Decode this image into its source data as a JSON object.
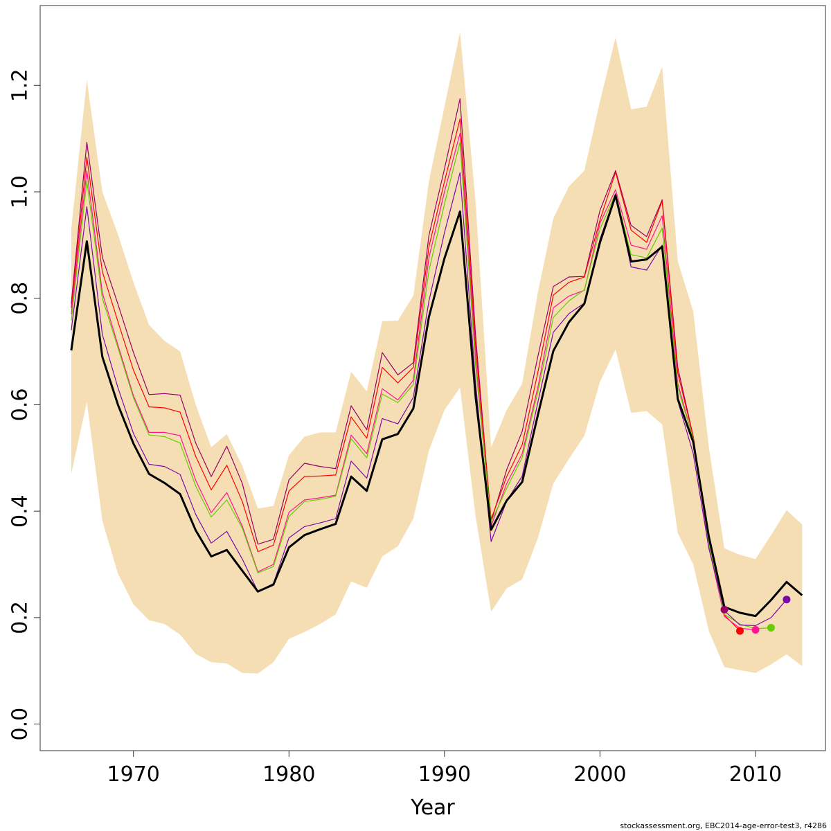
{
  "chart_data": {
    "type": "line",
    "title": "",
    "xlabel": "Year",
    "ylabel": "",
    "xlim": [
      1964,
      2014.5
    ],
    "ylim": [
      -0.05,
      1.35
    ],
    "x_ticks": [
      1970,
      1980,
      1990,
      2000,
      2010
    ],
    "y_ticks": [
      0.0,
      0.2,
      0.4,
      0.6,
      0.8,
      1.0,
      1.2
    ],
    "x_tick_labels": [
      "1970",
      "1980",
      "1990",
      "2000",
      "2010"
    ],
    "y_tick_labels": [
      "0.0",
      "0.2",
      "0.4",
      "0.6",
      "0.8",
      "1.0",
      "1.2"
    ],
    "grid": false,
    "footer": "stockassessment.org, EBC2014-age-error-test3, r4286",
    "colors": {
      "band": "#f5deb3",
      "base": "#000000"
    },
    "band": {
      "x": [
        1966,
        1967,
        1968,
        1969,
        1970,
        1971,
        1972,
        1973,
        1974,
        1975,
        1976,
        1977,
        1978,
        1979,
        1980,
        1981,
        1982,
        1983,
        1984,
        1985,
        1986,
        1987,
        1988,
        1989,
        1990,
        1991,
        1992,
        1993,
        1994,
        1995,
        1996,
        1997,
        1998,
        1999,
        2000,
        2001,
        2002,
        2003,
        2004,
        2005,
        2006,
        2007,
        2008,
        2009,
        2010,
        2011,
        2012,
        2013
      ],
      "upper": [
        0.93,
        1.21,
        1.0,
        0.92,
        0.83,
        0.75,
        0.72,
        0.7,
        0.6,
        0.52,
        0.545,
        0.485,
        0.405,
        0.41,
        0.505,
        0.54,
        0.548,
        0.548,
        0.662,
        0.625,
        0.757,
        0.758,
        0.805,
        1.02,
        1.16,
        1.3,
        0.98,
        0.52,
        0.59,
        0.64,
        0.81,
        0.95,
        1.01,
        1.04,
        1.17,
        1.29,
        1.155,
        1.16,
        1.235,
        0.87,
        0.775,
        0.52,
        0.33,
        0.318,
        0.31,
        0.355,
        0.402,
        0.375
      ],
      "lower": [
        0.47,
        0.605,
        0.382,
        0.283,
        0.225,
        0.195,
        0.188,
        0.168,
        0.132,
        0.116,
        0.114,
        0.096,
        0.095,
        0.116,
        0.16,
        0.173,
        0.188,
        0.206,
        0.268,
        0.256,
        0.315,
        0.334,
        0.386,
        0.514,
        0.59,
        0.632,
        0.39,
        0.211,
        0.255,
        0.272,
        0.349,
        0.452,
        0.498,
        0.542,
        0.643,
        0.704,
        0.585,
        0.588,
        0.563,
        0.359,
        0.3,
        0.175,
        0.107,
        0.101,
        0.096,
        0.112,
        0.131,
        0.109
      ]
    },
    "series": [
      {
        "color": "#000000",
        "width": 3,
        "x": [
          1966,
          1967,
          1968,
          1969,
          1970,
          1971,
          1972,
          1973,
          1974,
          1975,
          1976,
          1977,
          1978,
          1979,
          1980,
          1981,
          1982,
          1983,
          1984,
          1985,
          1986,
          1987,
          1988,
          1989,
          1990,
          1991,
          1992,
          1993,
          1994,
          1995,
          1996,
          1997,
          1998,
          1999,
          2000,
          2001,
          2002,
          2003,
          2004,
          2005,
          2006,
          2007,
          2008,
          2009,
          2010,
          2011,
          2012,
          2013
        ],
        "y": [
          0.702,
          0.907,
          0.69,
          0.6,
          0.527,
          0.47,
          0.453,
          0.432,
          0.364,
          0.315,
          0.327,
          0.288,
          0.249,
          0.262,
          0.332,
          0.355,
          0.366,
          0.376,
          0.465,
          0.438,
          0.535,
          0.545,
          0.593,
          0.765,
          0.875,
          0.963,
          0.615,
          0.365,
          0.42,
          0.455,
          0.58,
          0.701,
          0.755,
          0.79,
          0.905,
          0.993,
          0.869,
          0.873,
          0.897,
          0.611,
          0.53,
          0.352,
          0.22,
          0.209,
          0.203,
          0.233,
          0.267,
          0.242
        ]
      },
      {
        "color": "#7b0aa8",
        "width": 1.2,
        "end_marker": true,
        "x": [
          1966,
          1967,
          1968,
          1969,
          1970,
          1971,
          1972,
          1973,
          1974,
          1975,
          1976,
          1977,
          1978,
          1979,
          1980,
          1981,
          1982,
          1983,
          1984,
          1985,
          1986,
          1987,
          1988,
          1989,
          1990,
          1991,
          1992,
          1993,
          1994,
          1995,
          1996,
          1997,
          1998,
          1999,
          2000,
          2001,
          2002,
          2003,
          2004,
          2005,
          2006,
          2007,
          2008,
          2009,
          2010,
          2011,
          2012
        ],
        "y": [
          0.74,
          0.972,
          0.732,
          0.632,
          0.546,
          0.488,
          0.484,
          0.469,
          0.394,
          0.34,
          0.362,
          0.31,
          0.249,
          0.264,
          0.35,
          0.371,
          0.378,
          0.386,
          0.494,
          0.462,
          0.574,
          0.564,
          0.614,
          0.795,
          0.923,
          1.036,
          0.64,
          0.343,
          0.419,
          0.466,
          0.604,
          0.736,
          0.771,
          0.791,
          0.911,
          0.996,
          0.859,
          0.853,
          0.9,
          0.607,
          0.508,
          0.33,
          0.213,
          0.186,
          0.185,
          0.2,
          0.234
        ]
      },
      {
        "color": "#66cc00",
        "width": 1.2,
        "end_marker": true,
        "x": [
          1966,
          1967,
          1968,
          1969,
          1970,
          1971,
          1972,
          1973,
          1974,
          1975,
          1976,
          1977,
          1978,
          1979,
          1980,
          1981,
          1982,
          1983,
          1984,
          1985,
          1986,
          1987,
          1988,
          1989,
          1990,
          1991,
          1992,
          1993,
          1994,
          1995,
          1996,
          1997,
          1998,
          1999,
          2000,
          2001,
          2002,
          2003,
          2004,
          2005,
          2006,
          2007,
          2008,
          2009,
          2010,
          2011
        ],
        "y": [
          0.758,
          1.02,
          0.8,
          0.707,
          0.613,
          0.543,
          0.54,
          0.528,
          0.447,
          0.389,
          0.421,
          0.368,
          0.284,
          0.296,
          0.39,
          0.418,
          0.422,
          0.428,
          0.536,
          0.5,
          0.62,
          0.604,
          0.638,
          0.852,
          0.977,
          1.093,
          0.673,
          0.38,
          0.443,
          0.501,
          0.624,
          0.764,
          0.795,
          0.816,
          0.93,
          0.997,
          0.882,
          0.876,
          0.932,
          0.632,
          0.536,
          0.339,
          0.206,
          0.188,
          0.179,
          0.181
        ]
      },
      {
        "color": "#ff1493",
        "width": 1.2,
        "end_marker": true,
        "x": [
          1966,
          1967,
          1968,
          1969,
          1970,
          1971,
          1972,
          1973,
          1974,
          1975,
          1976,
          1977,
          1978,
          1979,
          1980,
          1981,
          1982,
          1983,
          1984,
          1985,
          1986,
          1987,
          1988,
          1989,
          1990,
          1991,
          1992,
          1993,
          1994,
          1995,
          1996,
          1997,
          1998,
          1999,
          2000,
          2001,
          2002,
          2003,
          2004,
          2005,
          2006,
          2007,
          2008,
          2009,
          2010
        ],
        "y": [
          0.77,
          1.04,
          0.81,
          0.712,
          0.617,
          0.548,
          0.548,
          0.542,
          0.458,
          0.397,
          0.435,
          0.372,
          0.286,
          0.3,
          0.398,
          0.421,
          0.425,
          0.43,
          0.543,
          0.508,
          0.63,
          0.609,
          0.646,
          0.876,
          1.0,
          1.11,
          0.687,
          0.372,
          0.452,
          0.508,
          0.632,
          0.782,
          0.804,
          0.815,
          0.941,
          1.004,
          0.9,
          0.892,
          0.955,
          0.64,
          0.535,
          0.333,
          0.202,
          0.18,
          0.177
        ]
      },
      {
        "color": "#ff0000",
        "width": 1.2,
        "end_marker": true,
        "x": [
          1966,
          1967,
          1968,
          1969,
          1970,
          1971,
          1972,
          1973,
          1974,
          1975,
          1976,
          1977,
          1978,
          1979,
          1980,
          1981,
          1982,
          1983,
          1984,
          1985,
          1986,
          1987,
          1988,
          1989,
          1990,
          1991,
          1992,
          1993,
          1994,
          1995,
          1996,
          1997,
          1998,
          1999,
          2000,
          2001,
          2002,
          2003,
          2004,
          2005,
          2006,
          2007,
          2008,
          2009
        ],
        "y": [
          0.782,
          1.065,
          0.85,
          0.756,
          0.665,
          0.596,
          0.594,
          0.586,
          0.503,
          0.44,
          0.486,
          0.418,
          0.324,
          0.336,
          0.438,
          0.465,
          0.466,
          0.468,
          0.577,
          0.537,
          0.67,
          0.641,
          0.67,
          0.897,
          1.019,
          1.137,
          0.71,
          0.385,
          0.465,
          0.525,
          0.66,
          0.806,
          0.83,
          0.84,
          0.947,
          1.037,
          0.928,
          0.905,
          0.983,
          0.66,
          0.54,
          0.335,
          0.205,
          0.175
        ]
      },
      {
        "color": "#990066",
        "width": 1.2,
        "end_marker": true,
        "x": [
          1966,
          1967,
          1968,
          1969,
          1970,
          1971,
          1972,
          1973,
          1974,
          1975,
          1976,
          1977,
          1978,
          1979,
          1980,
          1981,
          1982,
          1983,
          1984,
          1985,
          1986,
          1987,
          1988,
          1989,
          1990,
          1991,
          1992,
          1993,
          1994,
          1995,
          1996,
          1997,
          1998,
          1999,
          2000,
          2001,
          2002,
          2003,
          2004,
          2005,
          2006,
          2007,
          2008
        ],
        "y": [
          0.79,
          1.093,
          0.877,
          0.789,
          0.698,
          0.619,
          0.621,
          0.618,
          0.528,
          0.465,
          0.522,
          0.452,
          0.338,
          0.347,
          0.459,
          0.49,
          0.484,
          0.48,
          0.598,
          0.553,
          0.698,
          0.656,
          0.679,
          0.918,
          1.043,
          1.175,
          0.73,
          0.38,
          0.478,
          0.55,
          0.69,
          0.822,
          0.84,
          0.841,
          0.965,
          1.04,
          0.937,
          0.916,
          0.985,
          0.67,
          0.54,
          0.345,
          0.215
        ]
      }
    ]
  }
}
